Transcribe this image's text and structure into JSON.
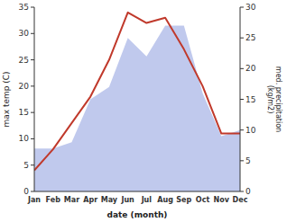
{
  "chart_data": {
    "type": "line",
    "x_label": "date (month)",
    "y_label": "max temp (C)",
    "y2_label": "med. precipitation\n(kg/m2)",
    "categories": [
      "Jan",
      "Feb",
      "Mar",
      "Apr",
      "May",
      "Jun",
      "Jul",
      "Aug",
      "Sep",
      "Oct",
      "Nov",
      "Dec"
    ],
    "series": [
      {
        "type": "area",
        "axis": "y2",
        "color": "#b0bce8",
        "values": [
          7.0,
          7.0,
          8.0,
          15.0,
          17.0,
          25.0,
          22.0,
          27.0,
          27.0,
          16.0,
          9.0,
          10.0
        ]
      },
      {
        "type": "line",
        "color": "#c0392b",
        "values": [
          4.0,
          8.0,
          13.0,
          18.0,
          25.0,
          34.0,
          32.0,
          33.0,
          27.0,
          20.0,
          11.0,
          11.0
        ]
      }
    ],
    "ylim": [
      0,
      35
    ],
    "yticks": [
      0,
      5,
      10,
      15,
      20,
      25,
      30,
      35
    ],
    "y2lim": [
      0,
      30
    ],
    "y2ticks": [
      0,
      5,
      10,
      15,
      20,
      25,
      30
    ],
    "grid": false
  }
}
